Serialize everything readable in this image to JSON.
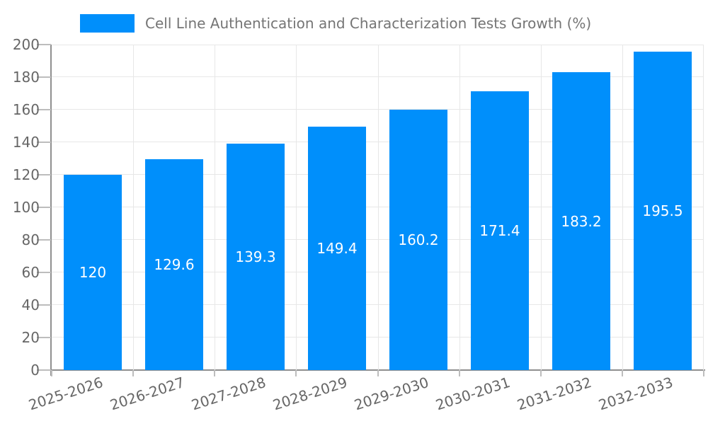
{
  "chart_data": {
    "type": "bar",
    "title": "Cell Line Authentication and Characterization Tests Growth (%)",
    "categories": [
      "2025-2026",
      "2026-2027",
      "2027-2028",
      "2028-2029",
      "2029-2030",
      "2030-2031",
      "2031-2032",
      "2032-2033"
    ],
    "values": [
      120,
      129.6,
      139.3,
      149.4,
      160.2,
      171.4,
      183.2,
      195.5
    ],
    "value_labels": [
      "120",
      "129.6",
      "139.3",
      "149.4",
      "160.2",
      "171.4",
      "183.2",
      "195.5"
    ],
    "y_ticks": [
      0,
      20,
      40,
      60,
      80,
      100,
      120,
      140,
      160,
      180,
      200
    ],
    "ylim": [
      0,
      200
    ],
    "xlabel": "",
    "ylabel": "",
    "grid": true,
    "legend_position": "top",
    "colors": {
      "bar": "#008FFB",
      "bar_label_text": "#ffffff",
      "axis_text": "#666666",
      "legend_text": "#757575",
      "gridline": "#e7e7e7",
      "tick": "#bdbdbd",
      "axis_line": "#8f8f8f",
      "background": "#ffffff"
    }
  }
}
